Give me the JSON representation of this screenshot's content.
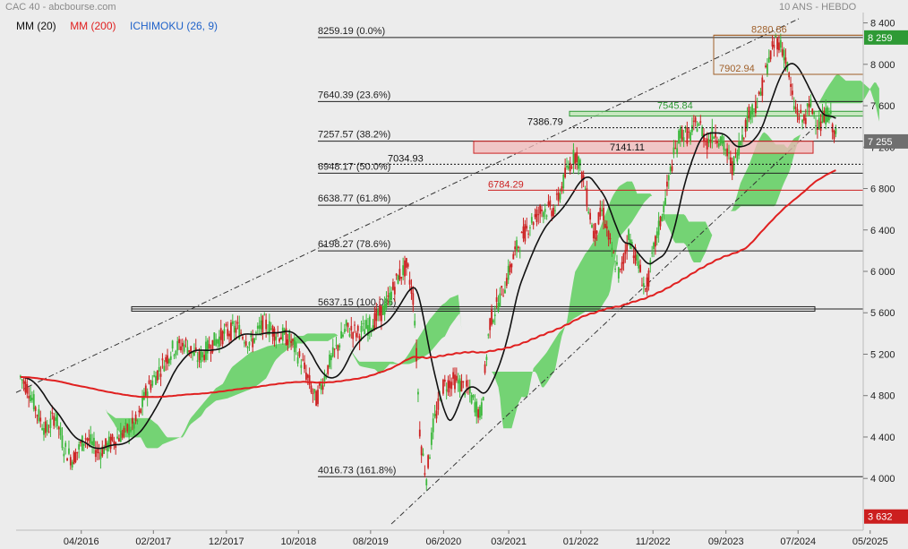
{
  "header": {
    "title": "CAC 40 - abcbourse.com",
    "timeframe": "10 ANS - HEBDO"
  },
  "legend": [
    {
      "label": "MM (20)",
      "color": "#111111"
    },
    {
      "label": "MM (200)",
      "color": "#e02020"
    },
    {
      "label": "ICHIMOKU (26, 9)",
      "color": "#1f62c9"
    }
  ],
  "chart_data": {
    "type": "candlestick",
    "title": "CAC 40",
    "y_axis": {
      "min": 3500,
      "max": 8500,
      "ticks": [
        4000,
        4400,
        4800,
        5200,
        5600,
        6000,
        6400,
        6800,
        7200,
        7600,
        8000,
        8400
      ],
      "tick_labels": [
        "4 000",
        "4 400",
        "4 800",
        "5 200",
        "5 600",
        "6 000",
        "6 400",
        "6 800",
        "7 200",
        "7 600",
        "8 000",
        "8 400"
      ],
      "side": "right"
    },
    "x_axis": {
      "min": 2015.5,
      "max": 2025.25,
      "ticks": [
        2016.25,
        2017.08,
        2017.92,
        2018.75,
        2019.58,
        2020.42,
        2021.17,
        2022.0,
        2022.83,
        2023.67,
        2024.5,
        2025.33
      ],
      "tick_labels": [
        "04/2016",
        "02/2017",
        "12/2017",
        "10/2018",
        "08/2019",
        "06/2020",
        "03/2021",
        "01/2022",
        "11/2022",
        "09/2023",
        "07/2024",
        "05/2025"
      ]
    },
    "price_markers": [
      {
        "label": "8 259",
        "value": 8259,
        "color": "#2e9a35"
      },
      {
        "label": "7 255",
        "value": 7255,
        "color": "#6f6f6f"
      },
      {
        "label": "3 632",
        "value": 3632,
        "color": "#cc1f1f"
      }
    ],
    "fibonacci_levels": [
      {
        "label": "8259.19 (0.0%)",
        "value": 8259.19
      },
      {
        "label": "7640.39 (23.6%)",
        "value": 7640.39
      },
      {
        "label": "7257.57 (38.2%)",
        "value": 7257.57
      },
      {
        "label": "6948.17 (50.0%)",
        "value": 6948.17
      },
      {
        "label": "6638.77 (61.8%)",
        "value": 6638.77
      },
      {
        "label": "6198.27 (78.6%)",
        "value": 6198.27
      },
      {
        "label": "5637.15 (100.0%)",
        "value": 5637.15
      },
      {
        "label": "4016.73 (161.8%)",
        "value": 4016.73
      }
    ],
    "annotations": [
      {
        "label": "8280.86",
        "value": 8280.86,
        "color": "#a0602a"
      },
      {
        "label": "7902.94",
        "value": 7902.94,
        "color": "#a0602a"
      },
      {
        "label": "7545.84",
        "value": 7545.84,
        "color": "#2e9a35"
      },
      {
        "label": "7386.79",
        "value": 7386.79,
        "color": "#111111"
      },
      {
        "label": "7141.11",
        "value": 7141.11,
        "color": "#111111"
      },
      {
        "label": "7034.93",
        "value": 7034.93,
        "color": "#111111"
      },
      {
        "label": "6784.29",
        "value": 6784.29,
        "color": "#cc1f1f"
      }
    ],
    "price_path": [
      [
        2015.55,
        4980
      ],
      [
        2015.65,
        4850
      ],
      [
        2015.75,
        4620
      ],
      [
        2015.85,
        4450
      ],
      [
        2015.95,
        4620
      ],
      [
        2016.05,
        4300
      ],
      [
        2016.15,
        4180
      ],
      [
        2016.3,
        4400
      ],
      [
        2016.45,
        4250
      ],
      [
        2016.6,
        4350
      ],
      [
        2016.75,
        4450
      ],
      [
        2016.9,
        4550
      ],
      [
        2017.0,
        4850
      ],
      [
        2017.15,
        5050
      ],
      [
        2017.3,
        5250
      ],
      [
        2017.45,
        5300
      ],
      [
        2017.6,
        5150
      ],
      [
        2017.75,
        5300
      ],
      [
        2017.9,
        5400
      ],
      [
        2018.05,
        5450
      ],
      [
        2018.2,
        5300
      ],
      [
        2018.35,
        5500
      ],
      [
        2018.5,
        5400
      ],
      [
        2018.65,
        5350
      ],
      [
        2018.8,
        5100
      ],
      [
        2018.95,
        4750
      ],
      [
        2019.1,
        5100
      ],
      [
        2019.3,
        5450
      ],
      [
        2019.45,
        5400
      ],
      [
        2019.6,
        5500
      ],
      [
        2019.75,
        5650
      ],
      [
        2019.9,
        5950
      ],
      [
        2020.0,
        6050
      ],
      [
        2020.08,
        5700
      ],
      [
        2020.15,
        4400
      ],
      [
        2020.22,
        4000
      ],
      [
        2020.3,
        4500
      ],
      [
        2020.42,
        4900
      ],
      [
        2020.55,
        4950
      ],
      [
        2020.7,
        4850
      ],
      [
        2020.85,
        4600
      ],
      [
        2020.95,
        5500
      ],
      [
        2021.1,
        5800
      ],
      [
        2021.25,
        6200
      ],
      [
        2021.4,
        6450
      ],
      [
        2021.55,
        6600
      ],
      [
        2021.7,
        6600
      ],
      [
        2021.85,
        7000
      ],
      [
        2021.95,
        7150
      ],
      [
        2022.05,
        6800
      ],
      [
        2022.15,
        6350
      ],
      [
        2022.25,
        6600
      ],
      [
        2022.35,
        6200
      ],
      [
        2022.45,
        5950
      ],
      [
        2022.55,
        6350
      ],
      [
        2022.65,
        6100
      ],
      [
        2022.75,
        5800
      ],
      [
        2022.85,
        6250
      ],
      [
        2022.95,
        6600
      ],
      [
        2023.05,
        7050
      ],
      [
        2023.15,
        7350
      ],
      [
        2023.25,
        7300
      ],
      [
        2023.35,
        7450
      ],
      [
        2023.45,
        7250
      ],
      [
        2023.55,
        7350
      ],
      [
        2023.65,
        7200
      ],
      [
        2023.75,
        7000
      ],
      [
        2023.85,
        7300
      ],
      [
        2023.95,
        7550
      ],
      [
        2024.05,
        7650
      ],
      [
        2024.15,
        8000
      ],
      [
        2024.25,
        8250
      ],
      [
        2024.35,
        8100
      ],
      [
        2024.45,
        7600
      ],
      [
        2024.55,
        7450
      ],
      [
        2024.65,
        7600
      ],
      [
        2024.75,
        7400
      ],
      [
        2024.85,
        7550
      ],
      [
        2024.95,
        7255
      ]
    ]
  }
}
